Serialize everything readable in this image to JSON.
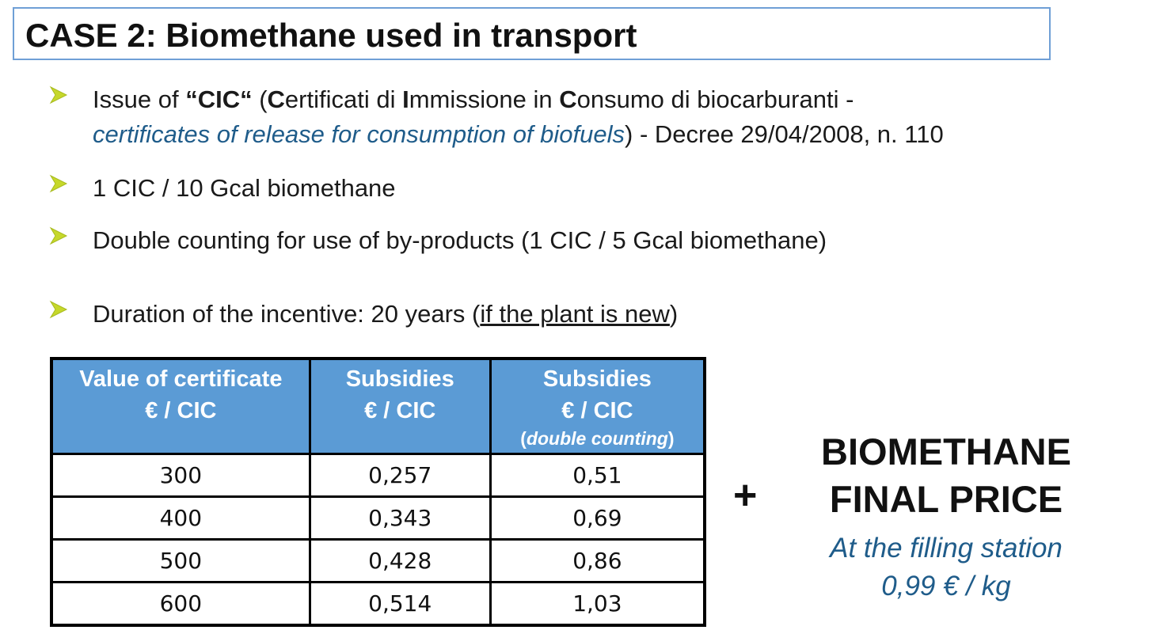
{
  "title": "CASE 2:  Biomethane used in transport",
  "bullets": [
    {
      "line1_a": "Issue of  ",
      "line1_cic": "“CIC“",
      "line1_b": " (",
      "line1_c1": "C",
      "line1_c1_rest": "ertificati di ",
      "line1_i": "I",
      "line1_i_rest": "mmissione in ",
      "line1_c2": "C",
      "line1_c2_rest": "onsumo di biocarburanti -",
      "line2_italic": "certificates of release for consumption of biofuels",
      "line2_rest": ") - Decree 29/04/2008, n. 110"
    },
    {
      "text": "1 CIC / 10 Gcal biomethane"
    },
    {
      "text": "Double counting for use of by-products (1 CIC / 5 Gcal biomethane)"
    },
    {
      "text_a": "Duration of the incentive: 20 years (",
      "text_underline": "if the plant is new",
      "text_b": ")"
    }
  ],
  "table": {
    "headers": [
      {
        "line1": "Value of certificate",
        "line2": "€ / CIC"
      },
      {
        "line1": "Subsidies",
        "line2": "€ / CIC"
      },
      {
        "line1": "Subsidies",
        "line2": "€ / CIC",
        "sub_open": "(",
        "sub_italic": "double counting",
        "sub_close": ")"
      }
    ],
    "rows": [
      [
        "300",
        "0,257",
        "0,51"
      ],
      [
        "400",
        "0,343",
        "0,69"
      ],
      [
        "500",
        "0,428",
        "0,86"
      ],
      [
        "600",
        "0,514",
        "1,03"
      ]
    ]
  },
  "plus": "+",
  "final": {
    "title_line1": "BIOMETHANE",
    "title_line2": "FINAL PRICE",
    "sub_line1": "At the filling station",
    "sub_line2": "0,99 € / kg"
  },
  "colors": {
    "title_border": "#6f9fd6",
    "header_fill": "#5b9bd5",
    "arrow": "#c6d82a",
    "accent_text": "#1f5c8a"
  }
}
